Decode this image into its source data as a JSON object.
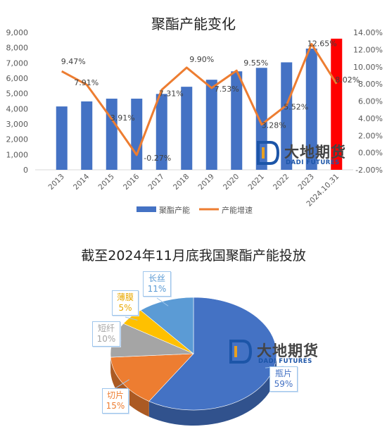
{
  "chart_data": [
    {
      "type": "bar+line",
      "title": "聚酯产能变化",
      "categories": [
        "2013",
        "2014",
        "2015",
        "2016",
        "2017",
        "2018",
        "2019",
        "2020",
        "2021",
        "2022",
        "2023",
        "2024.10.31"
      ],
      "series": [
        {
          "name": "聚酯产能",
          "type": "bar",
          "axis": "left",
          "values": [
            4150,
            4480,
            4660,
            4660,
            4970,
            5440,
            5900,
            6450,
            6680,
            7040,
            7940,
            8590
          ],
          "highlight_index": 11,
          "color": "#4472c4",
          "highlight_color": "#ff0000"
        },
        {
          "name": "产能增速",
          "type": "line",
          "axis": "right",
          "values": [
            9.47,
            7.91,
            3.91,
            -0.27,
            7.31,
            9.9,
            7.53,
            9.55,
            3.28,
            5.52,
            12.65,
            8.02
          ],
          "labels": [
            "9.47%",
            "7.91%",
            "3.91%",
            "-0.27%",
            "7.31%",
            "9.90%",
            "7.53%",
            "9.55%",
            "3.28%",
            "5.52%",
            "12.65%",
            "8.02%"
          ],
          "color": "#ed7d31"
        }
      ],
      "left_axis": {
        "min": 0,
        "max": 9000,
        "ticks": [
          "0",
          "1,000",
          "2,000",
          "3,000",
          "4,000",
          "5,000",
          "6,000",
          "7,000",
          "8,000",
          "9,000"
        ]
      },
      "right_axis": {
        "min": -2,
        "max": 14,
        "ticks": [
          "-2.00%",
          "0.00%",
          "2.00%",
          "4.00%",
          "6.00%",
          "8.00%",
          "10.00%",
          "12.00%",
          "14.00%"
        ]
      },
      "legend": "bottom",
      "grid": false
    },
    {
      "type": "pie",
      "title": "截至2024年11月底我国聚酯产能投放",
      "slices": [
        {
          "label": "瓶片",
          "value": 59,
          "pct": "59%",
          "color": "#4472c4",
          "text_color": "#4472c4"
        },
        {
          "label": "切片",
          "value": 15,
          "pct": "15%",
          "color": "#ed7d31",
          "text_color": "#ed7d31"
        },
        {
          "label": "短纤",
          "value": 10,
          "pct": "10%",
          "color": "#a5a5a5",
          "text_color": "#a5a5a5"
        },
        {
          "label": "薄膜",
          "value": 5,
          "pct": "5%",
          "color": "#ffc000",
          "text_color": "#e8a800"
        },
        {
          "label": "长丝",
          "value": 11,
          "pct": "11%",
          "color": "#5b9bd5",
          "text_color": "#5b9bd5"
        }
      ]
    }
  ],
  "watermark": {
    "cn": "大地期货",
    "en": "DADI FUTURES"
  }
}
